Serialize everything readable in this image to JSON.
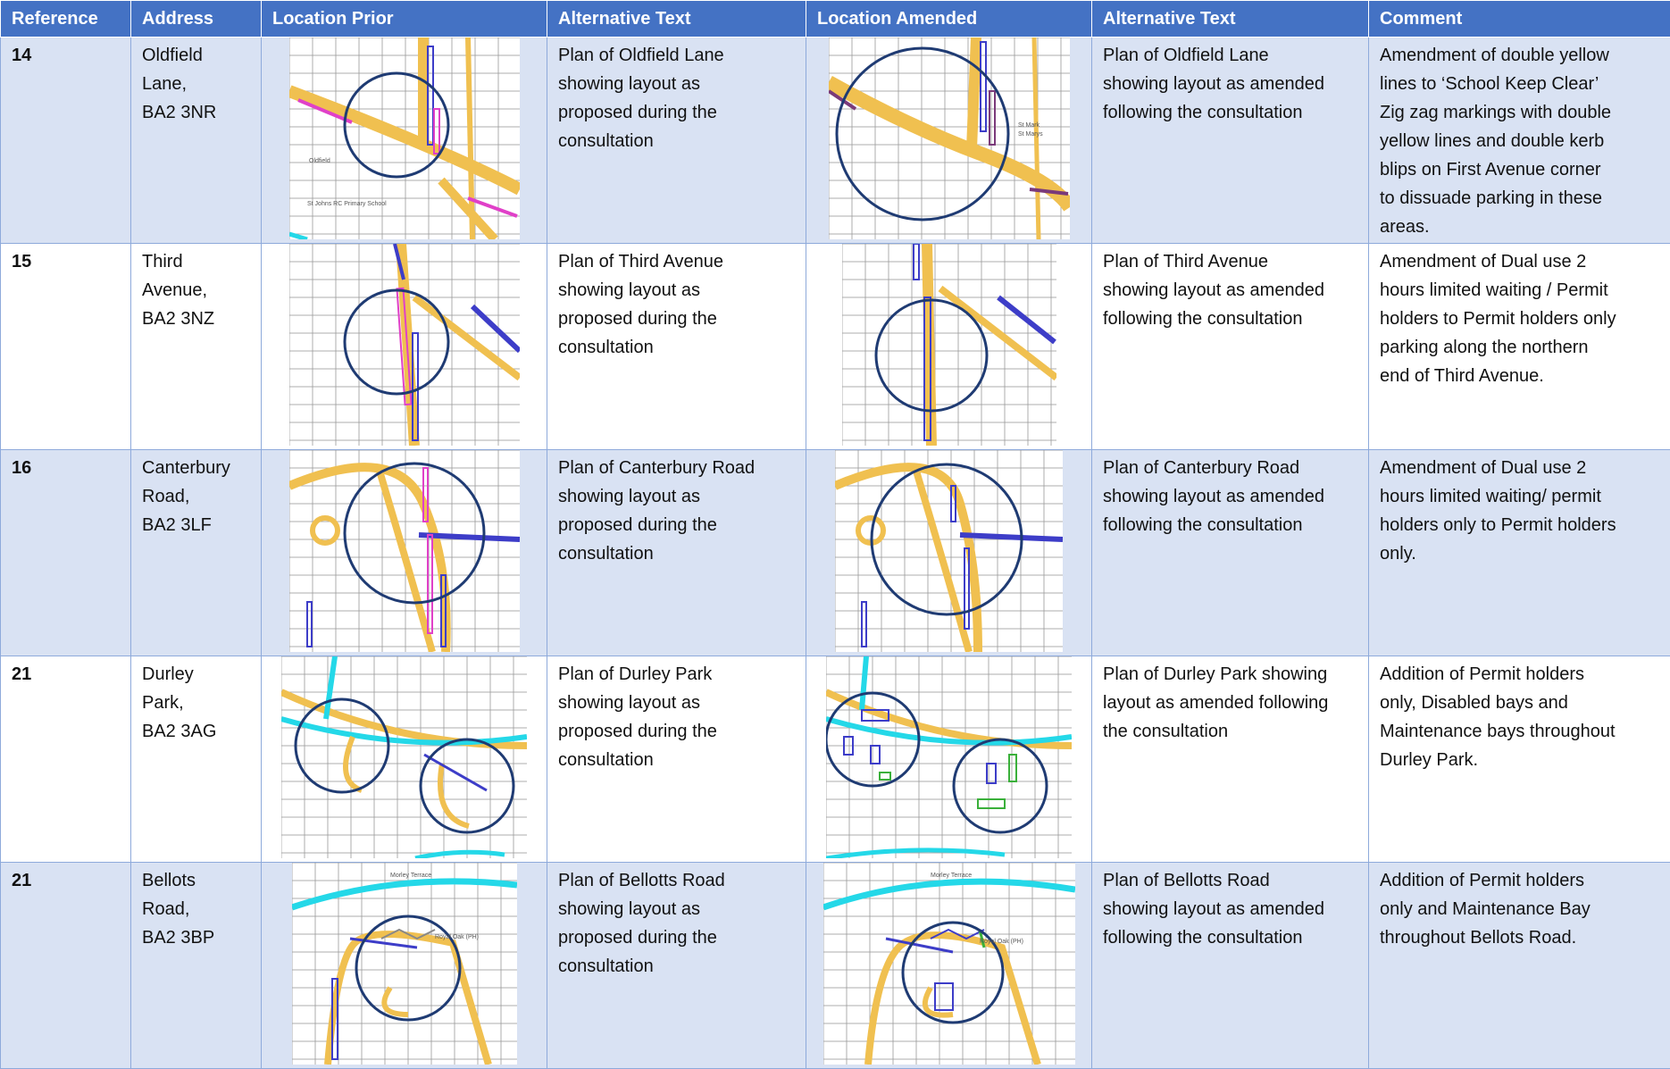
{
  "headers": [
    "Reference",
    "Address",
    "Location Prior",
    "Alternative Text",
    "Location Amended",
    "Alternative Text",
    "Comment"
  ],
  "rows": [
    {
      "ref": "14",
      "address": [
        "Oldfield",
        "Lane,",
        "BA2 3NR"
      ],
      "prior_alt": [
        "Plan of Oldfield Lane",
        "showing layout as",
        "proposed during the",
        "consultation"
      ],
      "amended_alt": [
        "Plan of Oldfield Lane",
        "showing layout as amended",
        "following the consultation"
      ],
      "comment": [
        "Amendment of double yellow",
        "lines to ‘School Keep Clear’",
        "Zig zag markings with double",
        "yellow lines and double kerb",
        "blips on First Avenue corner",
        "to dissuade parking in these",
        "areas."
      ]
    },
    {
      "ref": "15",
      "address": [
        "Third",
        "Avenue,",
        "BA2 3NZ"
      ],
      "prior_alt": [
        "Plan of Third Avenue",
        "showing layout as",
        "proposed during the",
        "consultation"
      ],
      "amended_alt": [
        "Plan of Third Avenue",
        "showing layout as amended",
        "following the consultation"
      ],
      "comment": [
        "Amendment of Dual use 2",
        "hours limited waiting / Permit",
        "holders to Permit holders only",
        "parking along the northern",
        "end of Third Avenue."
      ]
    },
    {
      "ref": "16",
      "address": [
        "Canterbury",
        "Road,",
        "BA2 3LF"
      ],
      "prior_alt": [
        "Plan of Canterbury Road",
        "showing layout as",
        "proposed during the",
        "consultation"
      ],
      "amended_alt": [
        "Plan of Canterbury Road",
        "showing layout as amended",
        "following the consultation"
      ],
      "comment": [
        "Amendment of Dual use 2",
        "hours limited waiting/ permit",
        "holders only to Permit holders",
        "only."
      ]
    },
    {
      "ref": "21",
      "address": [
        "Durley",
        "Park,",
        "BA2 3AG"
      ],
      "prior_alt": [
        "Plan of Durley Park",
        "showing layout as",
        "proposed during the",
        "consultation"
      ],
      "amended_alt": [
        "Plan of Durley Park showing",
        "layout as amended following",
        "the consultation"
      ],
      "comment": [
        "Addition of Permit holders",
        "only, Disabled bays and",
        "Maintenance bays throughout",
        "Durley Park."
      ]
    },
    {
      "ref": "21",
      "address": [
        "Bellots",
        "Road,",
        "BA2 3BP"
      ],
      "prior_alt": [
        "Plan of Bellotts Road",
        "showing layout as",
        "proposed during the",
        "consultation"
      ],
      "amended_alt": [
        "Plan of Bellotts Road",
        "showing layout as amended",
        "following the consultation"
      ],
      "comment": [
        "Addition of Permit holders",
        "only and Maintenance Bay",
        "throughout Bellots Road."
      ]
    }
  ],
  "map_labels": {
    "oldfield_prior": [
      "St Johns RC Primary School",
      "Oldfield"
    ],
    "oldfield_amended": [
      "St Mark",
      "St Marys"
    ],
    "bellotts": [
      "Morley Terrace",
      "Royal Oak (PH)"
    ]
  },
  "colors": {
    "header": "#4472c4",
    "band": "#d9e2f3",
    "circle": "#1f3b73",
    "road": "#f0c050",
    "bay": "#3d3dc8",
    "prior_bay": "#e040c8",
    "river": "#24d8e8"
  }
}
